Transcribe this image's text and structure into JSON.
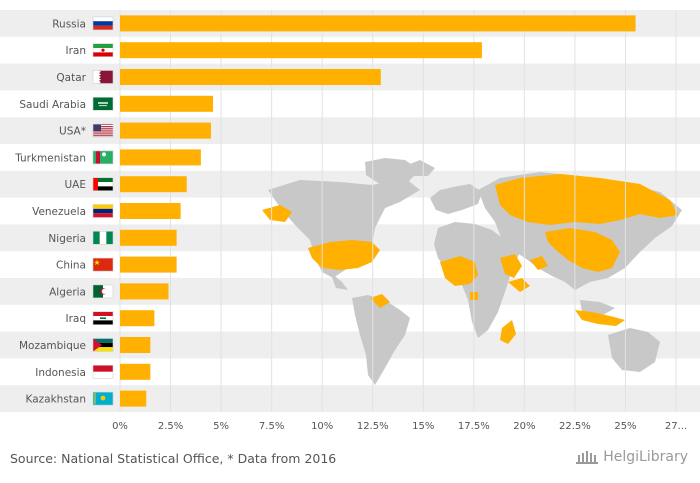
{
  "chart_data": {
    "type": "bar",
    "orientation": "horizontal",
    "categories": [
      "Russia",
      "Iran",
      "Qatar",
      "Saudi Arabia",
      "USA*",
      "Turkmenistan",
      "UAE",
      "Venezuela",
      "Nigeria",
      "China",
      "Algeria",
      "Iraq",
      "Mozambique",
      "Indonesia",
      "Kazakhstan"
    ],
    "values": [
      25.5,
      17.9,
      12.9,
      4.6,
      4.5,
      4.0,
      3.3,
      3.0,
      2.8,
      2.8,
      2.4,
      1.7,
      1.5,
      1.5,
      1.3
    ],
    "xlim": [
      0,
      27.5
    ],
    "x_ticks": [
      "0%",
      "2.5%",
      "5%",
      "7.5%",
      "10%",
      "12.5%",
      "15%",
      "17.5%",
      "20%",
      "22.5%",
      "25%",
      "27..."
    ],
    "title": "",
    "xlabel": "",
    "ylabel": "",
    "grid": true,
    "legend": "none",
    "colors": {
      "bar": "#FFB000",
      "row_band": "#EEEEEE",
      "grid": "#E2E2E2",
      "map_land": "#C8C8C8",
      "map_highlight": "#FFB000",
      "label": "#555555"
    },
    "flag_icons": [
      "russia-flag-icon",
      "iran-flag-icon",
      "qatar-flag-icon",
      "saudi-arabia-flag-icon",
      "usa-flag-icon",
      "turkmenistan-flag-icon",
      "uae-flag-icon",
      "venezuela-flag-icon",
      "nigeria-flag-icon",
      "china-flag-icon",
      "algeria-flag-icon",
      "iraq-flag-icon",
      "mozambique-flag-icon",
      "indonesia-flag-icon",
      "kazakhstan-flag-icon"
    ],
    "background_image": "world-map-icon"
  },
  "footer": {
    "source": "Source: National Statistical Office, * Data from 2016",
    "logo_text": "HelgiLibrary"
  }
}
